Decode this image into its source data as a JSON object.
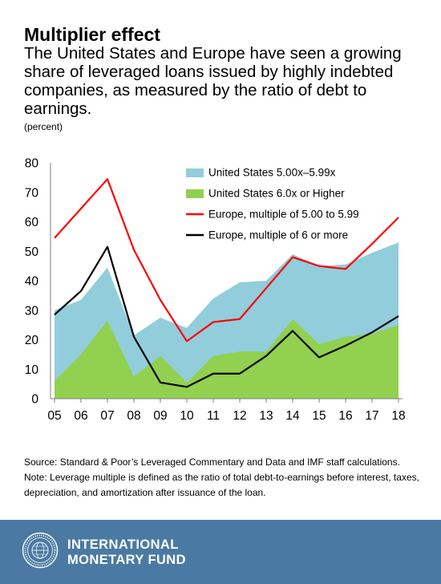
{
  "title": "Multiplier effect",
  "subtitle": "The United States and Europe have seen a growing share of leveraged loans issued by highly indebted companies, as measured by the ratio of debt to earnings.",
  "unit": "(percent)",
  "source": "Source: Standard & Poor’s Leveraged Commentary and Data and IMF staff calculations.",
  "note": "Note: Leverage multiple is defined as the ratio of total debt-to-earnings before interest, taxes, depreciation, and amortization after issuance of the loan.",
  "footer": {
    "line1": "INTERNATIONAL",
    "line2": "MONETARY FUND"
  },
  "colors": {
    "us_5_599": "#92cddc",
    "us_6_plus": "#92d050",
    "europe_5_599": "#ff0000",
    "europe_6_plus": "#000000",
    "footer_bg": "#4a7aa3"
  },
  "chart_data": {
    "type": "area",
    "categories": [
      "05",
      "06",
      "07",
      "08",
      "09",
      "10",
      "11",
      "12",
      "13",
      "14",
      "15",
      "16",
      "17",
      "18"
    ],
    "ylim": [
      0,
      80
    ],
    "yticks": [
      "0",
      "10",
      "20",
      "30",
      "40",
      "50",
      "60",
      "70",
      "80"
    ],
    "grid": false,
    "legend_position": "top-right",
    "xlabel": "",
    "ylabel": "",
    "series": [
      {
        "name": "United States 5.00x–5.99x",
        "kind": "area",
        "color": "#92cddc",
        "values": [
          30,
          33.5,
          44.5,
          21.5,
          27.5,
          24,
          34,
          39.5,
          40,
          49,
          45,
          45.5,
          49.5,
          53
        ]
      },
      {
        "name": "United States 6.0x or Higher",
        "kind": "area",
        "color": "#92d050",
        "values": [
          6,
          15,
          26.5,
          7.5,
          14.5,
          5.5,
          14.5,
          16,
          16,
          27,
          18.5,
          21,
          22,
          25
        ]
      },
      {
        "name": "Europe, multiple of 5.00 to 5.99",
        "kind": "line",
        "color": "#ff0000",
        "values": [
          54.5,
          64.5,
          74.5,
          50.5,
          33.5,
          19.5,
          26,
          27,
          37.5,
          48,
          45,
          44,
          52.5,
          61.5
        ]
      },
      {
        "name": "Europe, multiple of 6 or more",
        "kind": "line",
        "color": "#000000",
        "values": [
          28.5,
          36.5,
          51.5,
          21,
          5.5,
          4,
          8.5,
          8.5,
          14.5,
          23,
          14,
          18,
          22.5,
          28
        ]
      }
    ]
  }
}
